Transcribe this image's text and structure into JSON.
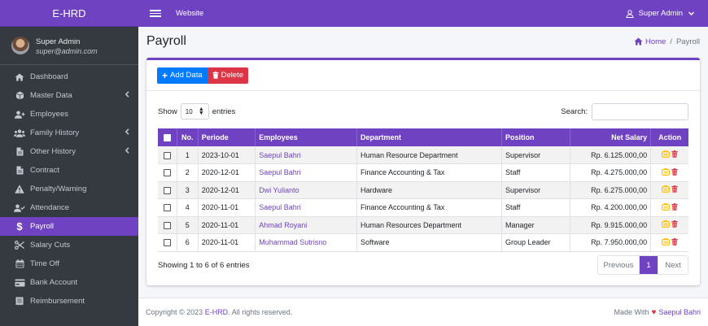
{
  "brand": "E-HRD",
  "user": {
    "name": "Super Admin",
    "email": "super@admin.com"
  },
  "sidebar": {
    "items": [
      {
        "label": "Dashboard",
        "icon": "home-icon",
        "chevron": false,
        "active": false
      },
      {
        "label": "Master Data",
        "icon": "cube-icon",
        "chevron": true,
        "active": false
      },
      {
        "label": "Employees",
        "icon": "user-plus-icon",
        "chevron": false,
        "active": false
      },
      {
        "label": "Family History",
        "icon": "users-icon",
        "chevron": true,
        "active": false
      },
      {
        "label": "Other History",
        "icon": "file-icon",
        "chevron": true,
        "active": false
      },
      {
        "label": "Contract",
        "icon": "file-icon",
        "chevron": false,
        "active": false
      },
      {
        "label": "Penalty/Warning",
        "icon": "warning-icon",
        "chevron": false,
        "active": false
      },
      {
        "label": "Attendance",
        "icon": "user-check-icon",
        "chevron": false,
        "active": false
      },
      {
        "label": "Payroll",
        "icon": "dollar-icon",
        "chevron": false,
        "active": true
      },
      {
        "label": "Salary Cuts",
        "icon": "scissors-icon",
        "chevron": false,
        "active": false
      },
      {
        "label": "Time Off",
        "icon": "calendar-icon",
        "chevron": false,
        "active": false
      },
      {
        "label": "Bank Account",
        "icon": "credit-card-icon",
        "chevron": false,
        "active": false
      },
      {
        "label": "Reimbursement",
        "icon": "receipt-icon",
        "chevron": false,
        "active": false
      }
    ]
  },
  "topbar": {
    "site_link": "Website",
    "user_menu": "Super Admin"
  },
  "page": {
    "title": "Payroll",
    "breadcrumb_home": "Home",
    "breadcrumb_separator": "/",
    "breadcrumb_current": "Payroll"
  },
  "toolbar": {
    "add_label": "Add Data",
    "delete_label": "Delete"
  },
  "controls": {
    "show_label": "Show",
    "entries_value": "10",
    "entries_label": "entries",
    "search_label": "Search:",
    "search_value": ""
  },
  "table": {
    "columns": [
      "No.",
      "Periode",
      "Employees",
      "Department",
      "Position",
      "Net Salary",
      "Action"
    ],
    "rows": [
      {
        "no": "1",
        "periode": "2023-10-01",
        "employee": "Saepul Bahri",
        "department": "Human Resource Department",
        "position": "Supervisor",
        "net_salary": "Rp. 6.125.000,00"
      },
      {
        "no": "2",
        "periode": "2020-12-01",
        "employee": "Saepul Bahri",
        "department": "Finance Accounting & Tax",
        "position": "Staff",
        "net_salary": "Rp. 4.275.000,00"
      },
      {
        "no": "3",
        "periode": "2020-12-01",
        "employee": "Dwi Yulianto",
        "department": "Hardware",
        "position": "Supervisor",
        "net_salary": "Rp. 6.275.000,00"
      },
      {
        "no": "4",
        "periode": "2020-11-01",
        "employee": "Saepul Bahri",
        "department": "Finance Accounting & Tax",
        "position": "Staff",
        "net_salary": "Rp. 4.200.000,00"
      },
      {
        "no": "5",
        "periode": "2020-11-01",
        "employee": "Ahmad Royani",
        "department": "Human Resources Department",
        "position": "Manager",
        "net_salary": "Rp. 9.915.000,00"
      },
      {
        "no": "6",
        "periode": "2020-11-01",
        "employee": "Muhammad Sutrisno",
        "department": "Software",
        "position": "Group Leader",
        "net_salary": "Rp. 7.950.000,00"
      }
    ]
  },
  "pagination": {
    "info": "Showing 1 to 6 of 6 entries",
    "previous": "Previous",
    "current": "1",
    "next": "Next"
  },
  "footer": {
    "copyright": "Copyright © 2023 ",
    "brand": "E-HRD",
    "rights": ". All rights reserved.",
    "made_with": "Made With",
    "author": "Saepul Bahri"
  },
  "colors": {
    "accent": "#6f42c1",
    "primary": "#007bff",
    "danger": "#dc3545",
    "warning": "#ffc107",
    "sidebar": "#343a40"
  }
}
